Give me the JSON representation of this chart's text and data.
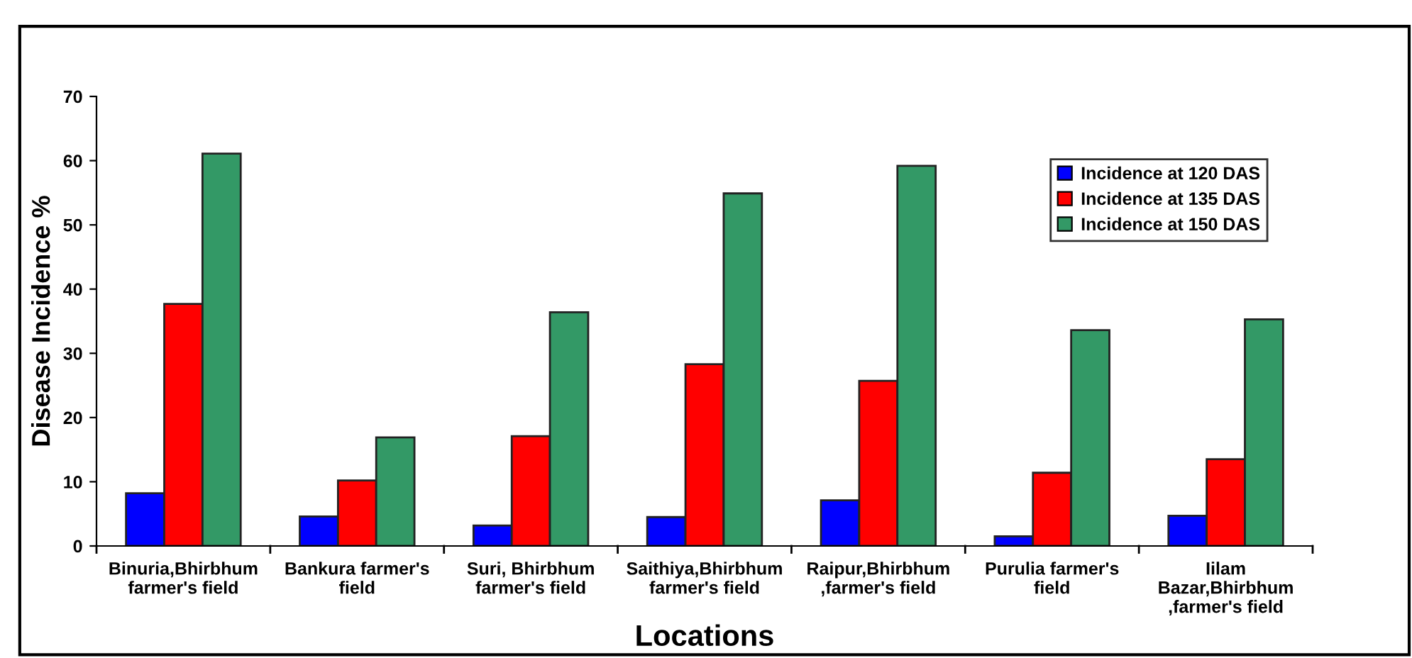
{
  "chart_data": {
    "type": "bar",
    "xlabel": "Locations",
    "ylabel": "Disease Incidence %",
    "categories": [
      "Binuria,Bhirbhum\nfarmer's field",
      "Bankura farmer's\nfield",
      "Suri, Bhirbhum\nfarmer's field",
      "Saithiya,Bhirbhum\nfarmer's field",
      "Raipur,Bhirbhum\n,farmer's field",
      "Purulia farmer's\nfield",
      "Iilam\nBazar,Bhirbhum\n,farmer's field"
    ],
    "series": [
      {
        "name": "Incidence at 120 DAS",
        "color": "#0000ff",
        "values": [
          8.2,
          4.6,
          3.2,
          4.5,
          7.1,
          1.5,
          4.7
        ]
      },
      {
        "name": "Incidence at 135 DAS",
        "color": "#ff0000",
        "values": [
          37.7,
          10.2,
          17.1,
          28.3,
          25.7,
          11.4,
          13.5
        ]
      },
      {
        "name": "Incidence at 150 DAS",
        "color": "#339966",
        "values": [
          61.1,
          16.9,
          36.4,
          54.9,
          59.2,
          33.6,
          35.3
        ]
      }
    ],
    "ylim": [
      0,
      70
    ],
    "yticks": [
      0,
      10,
      20,
      30,
      40,
      50,
      60,
      70
    ],
    "grid": false,
    "legend": "top right"
  }
}
